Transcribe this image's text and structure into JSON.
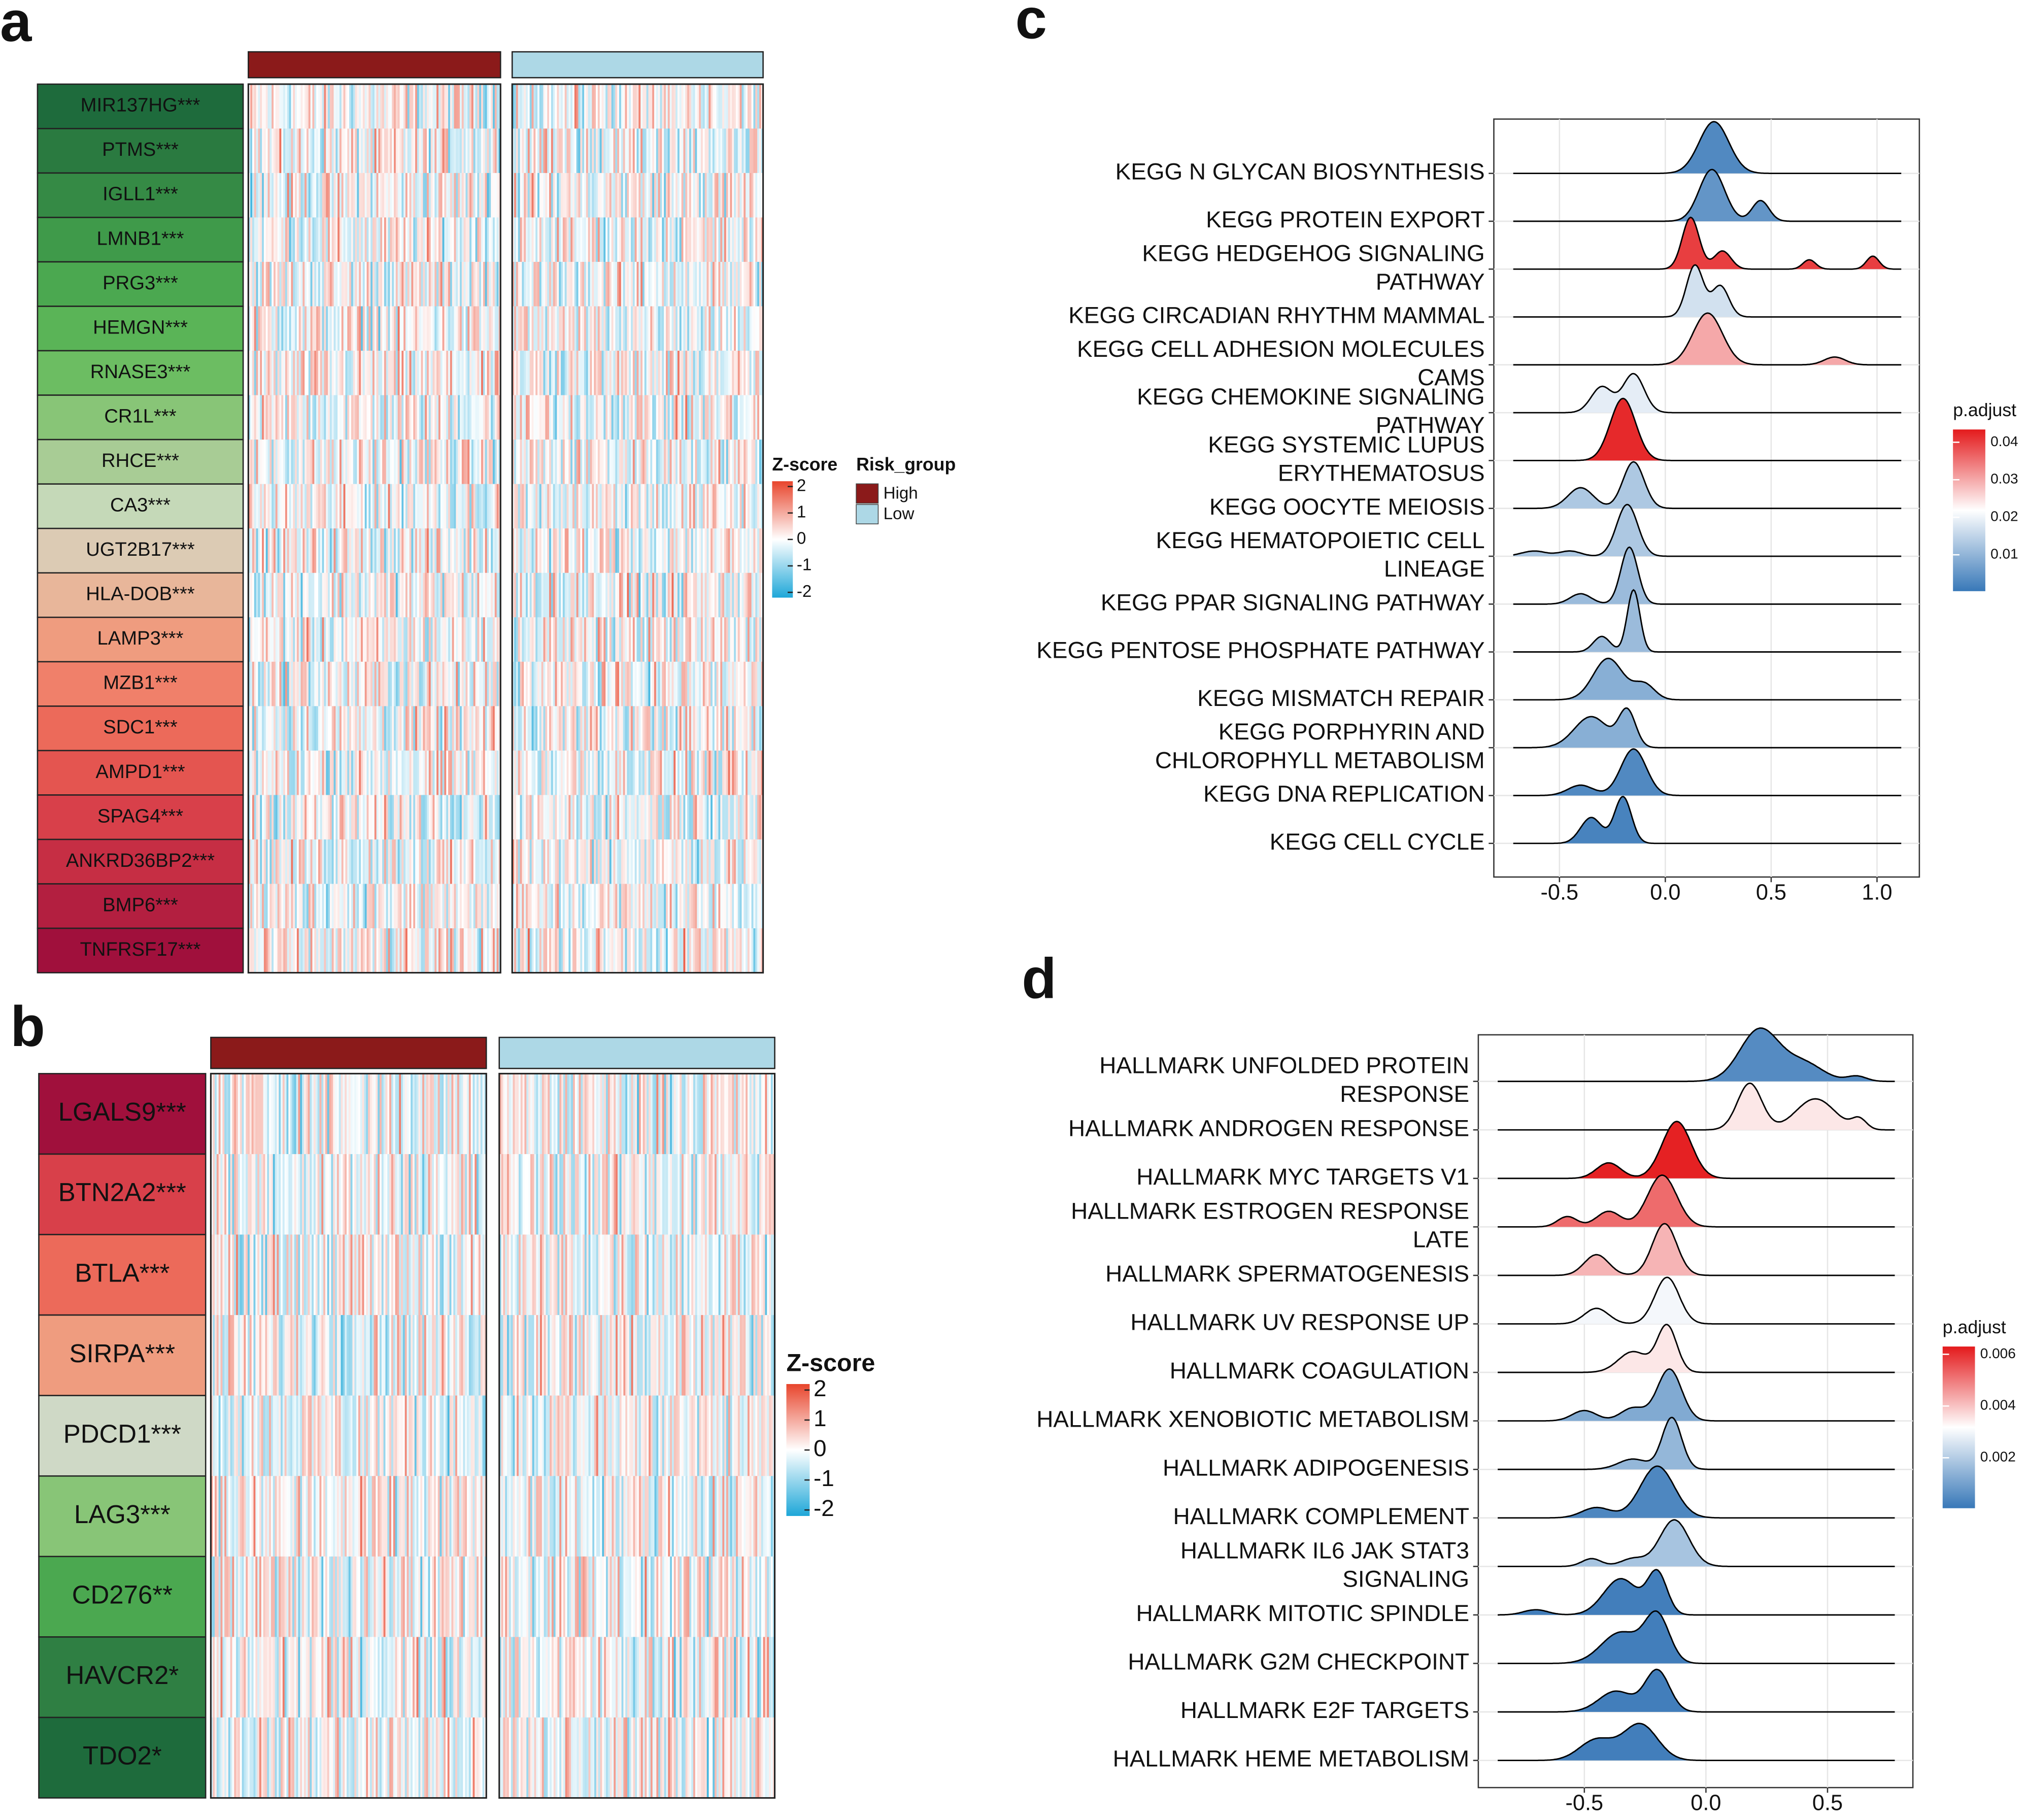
{
  "chart_data": [
    {
      "type": "heatmap",
      "panel_label": "a",
      "rows": [
        "MIR137HG***",
        "PTMS***",
        "IGLL1***",
        "LMNB1***",
        "PRG3***",
        "HEMGN***",
        "RNASE3***",
        "CR1L***",
        "RHCE***",
        "CA3***",
        "UGT2B17***",
        "HLA-DOB***",
        "LAMP3***",
        "MZB1***",
        "SDC1***",
        "AMPD1***",
        "SPAG4***",
        "ANKRD36BP2***",
        "BMP6***",
        "TNFRSF17***"
      ],
      "row_colors": [
        "#1e6b3c",
        "#2a7a40",
        "#358a45",
        "#3f9a4a",
        "#4ba850",
        "#5ab457",
        "#6cbd62",
        "#88c577",
        "#a8cc95",
        "#c5d9b8",
        "#dccbb4",
        "#e8b69a",
        "#ef9c7f",
        "#f0806a",
        "#ec6a5a",
        "#e45550",
        "#d8404a",
        "#c62e44",
        "#b31f40",
        "#a0103c"
      ],
      "groups": [
        {
          "name": "High",
          "color": "#8b1a1a"
        },
        {
          "name": "Low",
          "color": "#add8e6"
        }
      ],
      "legend_title": "Risk_group",
      "colorbar": {
        "title": "Z-score",
        "ticks": [
          2,
          1,
          0,
          -1,
          -2
        ],
        "lim": [
          -2.2,
          2.2
        ],
        "colors": [
          "#1ea7d8",
          "#ffffff",
          "#e8452c"
        ]
      }
    },
    {
      "type": "heatmap",
      "panel_label": "b",
      "rows": [
        "LGALS9***",
        "BTN2A2***",
        "BTLA***",
        "SIRPA***",
        "PDCD1***",
        "LAG3***",
        "CD276**",
        "HAVCR2*",
        "TDO2*"
      ],
      "row_colors": [
        "#a0103c",
        "#d8404a",
        "#ec6a5a",
        "#ef9c7f",
        "#cfd9c6",
        "#88c577",
        "#4ba850",
        "#2f7f43",
        "#1e6b3c"
      ],
      "groups": [
        {
          "color": "#8b1a1a"
        },
        {
          "color": "#add8e6"
        }
      ],
      "colorbar": {
        "title": "Z-score",
        "ticks": [
          2,
          1,
          0,
          -1,
          -2
        ],
        "lim": [
          -2.2,
          2.2
        ],
        "colors": [
          "#1ea7d8",
          "#ffffff",
          "#e8452c"
        ]
      }
    },
    {
      "type": "ridgeline",
      "panel_label": "c",
      "categories": [
        [
          "KEGG N GLYCAN BIOSYNTHESIS"
        ],
        [
          "KEGG PROTEIN EXPORT"
        ],
        [
          "KEGG HEDGEHOG SIGNALING",
          "PATHWAY"
        ],
        [
          "KEGG CIRCADIAN RHYTHM MAMMAL"
        ],
        [
          "KEGG CELL ADHESION MOLECULES",
          "CAMS"
        ],
        [
          "KEGG CHEMOKINE SIGNALING",
          "PATHWAY"
        ],
        [
          "KEGG SYSTEMIC LUPUS",
          "ERYTHEMATOSUS"
        ],
        [
          "KEGG OOCYTE MEIOSIS"
        ],
        [
          "KEGG HEMATOPOIETIC CELL",
          "LINEAGE"
        ],
        [
          "KEGG PPAR SIGNALING PATHWAY"
        ],
        [
          "KEGG PENTOSE PHOSPHATE PATHWAY"
        ],
        [
          "KEGG MISMATCH REPAIR"
        ],
        [
          "KEGG PORPHYRIN AND",
          "CHLOROPHYLL METABOLISM"
        ],
        [
          "KEGG DNA REPLICATION"
        ],
        [
          "KEGG CELL CYCLE"
        ]
      ],
      "values": [
        0.003,
        0.005,
        0.04,
        0.017,
        0.03,
        0.019,
        0.042,
        0.013,
        0.013,
        0.011,
        0.011,
        0.009,
        0.009,
        0.003,
        0.002
      ],
      "modes": [
        [
          [
            0.23,
            1,
            0.07
          ]
        ],
        [
          [
            0.22,
            1,
            0.06
          ],
          [
            0.45,
            0.4,
            0.04
          ]
        ],
        [
          [
            0.12,
            1,
            0.04
          ],
          [
            0.27,
            0.35,
            0.04
          ],
          [
            0.68,
            0.18,
            0.03
          ],
          [
            0.98,
            0.25,
            0.03
          ]
        ],
        [
          [
            0.14,
            1,
            0.04
          ],
          [
            0.26,
            0.6,
            0.04
          ]
        ],
        [
          [
            0.2,
            1,
            0.07
          ],
          [
            0.8,
            0.15,
            0.05
          ]
        ],
        [
          [
            -0.3,
            0.5,
            0.05
          ],
          [
            -0.15,
            0.75,
            0.05
          ]
        ],
        [
          [
            -0.2,
            1.2,
            0.06
          ]
        ],
        [
          [
            -0.4,
            0.4,
            0.06
          ],
          [
            -0.15,
            0.9,
            0.05
          ]
        ],
        [
          [
            -0.62,
            0.1,
            0.06
          ],
          [
            -0.45,
            0.1,
            0.05
          ],
          [
            -0.18,
            1,
            0.05
          ]
        ],
        [
          [
            -0.4,
            0.2,
            0.05
          ],
          [
            -0.17,
            1.1,
            0.04
          ]
        ],
        [
          [
            -0.3,
            0.3,
            0.04
          ],
          [
            -0.15,
            1.2,
            0.03
          ]
        ],
        [
          [
            -0.27,
            0.8,
            0.07
          ],
          [
            -0.1,
            0.3,
            0.05
          ]
        ],
        [
          [
            -0.35,
            0.6,
            0.08
          ],
          [
            -0.18,
            0.7,
            0.04
          ]
        ],
        [
          [
            -0.4,
            0.2,
            0.06
          ],
          [
            -0.15,
            0.9,
            0.06
          ]
        ],
        [
          [
            -0.35,
            0.5,
            0.05
          ],
          [
            -0.2,
            0.9,
            0.04
          ]
        ]
      ],
      "xlim": [
        -0.81,
        1.2
      ],
      "xticks": [
        -0.5,
        {
          "value": 0,
          "label": "0.0"
        },
        0.5,
        {
          "value": 1,
          "label": "1.0"
        }
      ],
      "grid": true,
      "legend_title": "p.adjust",
      "colorbar": {
        "lim": [
          0.0003,
          0.0434
        ],
        "ticks": [
          0.04,
          0.03,
          0.02,
          0.01
        ],
        "colors": [
          "#3878b8",
          "#ffffff",
          "#e41a1c"
        ]
      }
    },
    {
      "type": "ridgeline",
      "panel_label": "d",
      "categories": [
        [
          "HALLMARK UNFOLDED PROTEIN",
          "RESPONSE"
        ],
        [
          "HALLMARK ANDROGEN RESPONSE"
        ],
        [
          "HALLMARK MYC TARGETS V1"
        ],
        [
          "HALLMARK ESTROGEN RESPONSE",
          "LATE"
        ],
        [
          "HALLMARK SPERMATOGENESIS"
        ],
        [
          "HALLMARK UV RESPONSE UP"
        ],
        [
          "HALLMARK COAGULATION"
        ],
        [
          "HALLMARK XENOBIOTIC METABOLISM"
        ],
        [
          "HALLMARK ADIPOGENESIS"
        ],
        [
          "HALLMARK COMPLEMENT"
        ],
        [
          "HALLMARK IL6 JAK STAT3",
          "SIGNALING"
        ],
        [
          "HALLMARK MITOTIC SPINDLE"
        ],
        [
          "HALLMARK G2M CHECKPOINT"
        ],
        [
          "HALLMARK E2F TARGETS"
        ],
        [
          "HALLMARK HEME METABOLISM"
        ]
      ],
      "values": [
        0.0005,
        0.0035,
        0.0062,
        0.0052,
        0.0042,
        0.003,
        0.0035,
        0.0012,
        0.0015,
        0.0004,
        0.0018,
        0.0002,
        0.0002,
        0.0002,
        0.0002
      ],
      "modes": [
        [
          [
            0.22,
            1,
            0.08
          ],
          [
            0.4,
            0.35,
            0.08
          ],
          [
            0.62,
            0.1,
            0.04
          ]
        ],
        [
          [
            0.18,
            0.9,
            0.05
          ],
          [
            0.45,
            0.6,
            0.08
          ],
          [
            0.63,
            0.2,
            0.03
          ]
        ],
        [
          [
            -0.4,
            0.3,
            0.05
          ],
          [
            -0.12,
            1.1,
            0.06
          ]
        ],
        [
          [
            -0.57,
            0.2,
            0.04
          ],
          [
            -0.4,
            0.3,
            0.05
          ],
          [
            -0.18,
            1,
            0.06
          ]
        ],
        [
          [
            -0.45,
            0.4,
            0.05
          ],
          [
            -0.17,
            1,
            0.05
          ]
        ],
        [
          [
            -0.45,
            0.3,
            0.05
          ],
          [
            -0.16,
            0.9,
            0.05
          ]
        ],
        [
          [
            -0.3,
            0.4,
            0.06
          ],
          [
            -0.16,
            0.9,
            0.04
          ]
        ],
        [
          [
            -0.5,
            0.2,
            0.05
          ],
          [
            -0.3,
            0.25,
            0.05
          ],
          [
            -0.15,
            1,
            0.05
          ]
        ],
        [
          [
            -0.3,
            0.2,
            0.06
          ],
          [
            -0.14,
            1,
            0.04
          ]
        ],
        [
          [
            -0.45,
            0.2,
            0.06
          ],
          [
            -0.2,
            1,
            0.07
          ]
        ],
        [
          [
            -0.47,
            0.15,
            0.04
          ],
          [
            -0.3,
            0.15,
            0.05
          ],
          [
            -0.13,
            0.9,
            0.06
          ]
        ],
        [
          [
            -0.7,
            0.1,
            0.05
          ],
          [
            -0.35,
            0.7,
            0.07
          ],
          [
            -0.2,
            0.8,
            0.04
          ]
        ],
        [
          [
            -0.35,
            0.6,
            0.08
          ],
          [
            -0.2,
            0.9,
            0.05
          ]
        ],
        [
          [
            -0.37,
            0.4,
            0.07
          ],
          [
            -0.2,
            0.8,
            0.05
          ]
        ],
        [
          [
            -0.45,
            0.4,
            0.07
          ],
          [
            -0.27,
            0.7,
            0.07
          ]
        ]
      ],
      "xlim": [
        -0.936,
        0.851
      ],
      "xticks": [
        -0.5,
        {
          "value": 0,
          "label": "0.0"
        },
        0.5
      ],
      "grid": true,
      "legend_title": "p.adjust",
      "colorbar": {
        "lim": [
          5e-05,
          0.0063
        ],
        "ticks": [
          0.006,
          0.004,
          0.002
        ],
        "colors": [
          "#3878b8",
          "#ffffff",
          "#e41a1c"
        ]
      }
    }
  ]
}
